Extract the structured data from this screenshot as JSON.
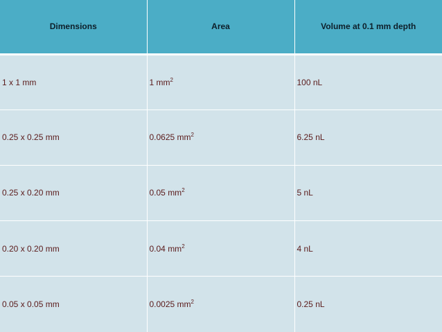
{
  "table": {
    "headers": [
      "Dimensions",
      "Area",
      "Volume at 0.1 mm depth"
    ],
    "rows": [
      {
        "dimensions": "1 x 1 mm",
        "area_value": "1 mm",
        "area_exp": "2",
        "volume": "100 nL"
      },
      {
        "dimensions": "0.25 x 0.25 mm",
        "area_value": "0.0625 mm",
        "area_exp": "2",
        "volume": "6.25 nL"
      },
      {
        "dimensions": "0.25 x 0.20 mm",
        "area_value": "0.05 mm",
        "area_exp": "2",
        "volume": "5 nL"
      },
      {
        "dimensions": "0.20 x 0.20 mm",
        "area_value": "0.04 mm",
        "area_exp": "2",
        "volume": "4 nL"
      },
      {
        "dimensions": "0.05 x 0.05 mm",
        "area_value": "0.0025 mm",
        "area_exp": "2",
        "volume": "0.25 nL"
      }
    ]
  },
  "colors": {
    "header_bg": "#4badc6",
    "row_bg": "#d2e3ea",
    "cell_text": "#5a1a1a"
  }
}
